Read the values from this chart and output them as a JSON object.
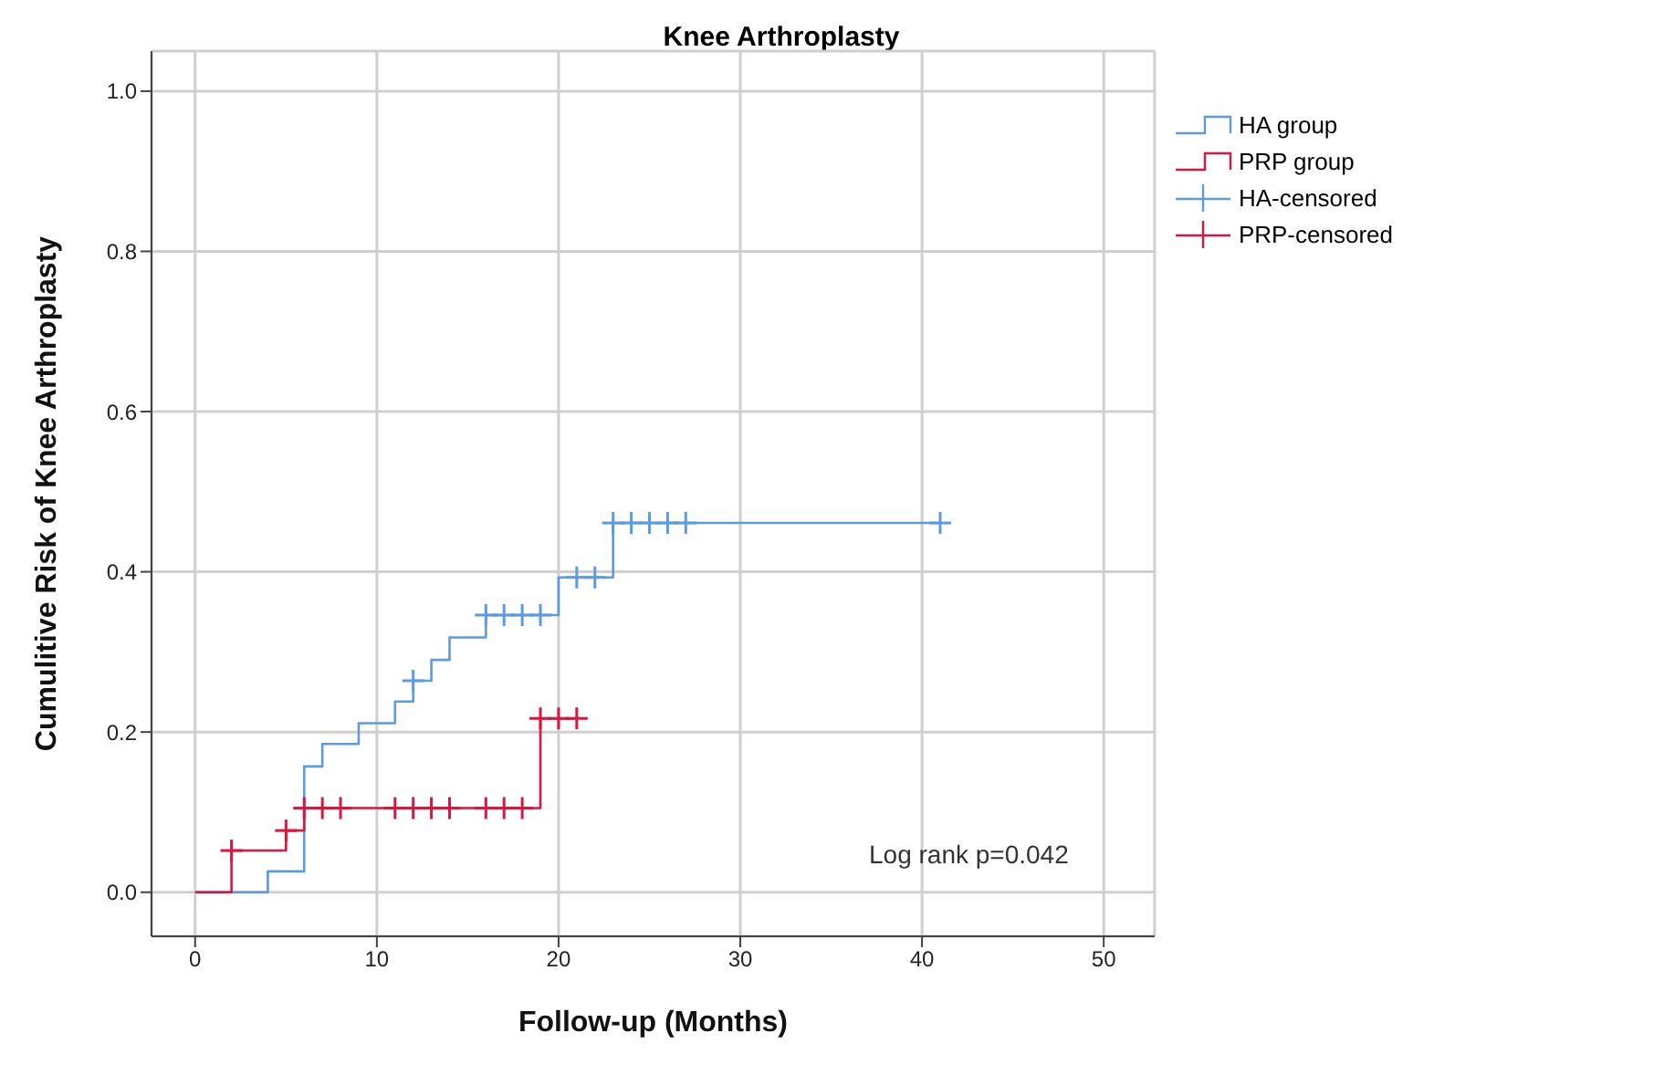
{
  "chart_data": {
    "type": "step",
    "title": "Knee Arthroplasty",
    "xlabel": "Follow-up (Months)",
    "ylabel": "Cumulitive Risk of Knee Arthroplasty",
    "xlim": [
      -2.4,
      52.8
    ],
    "xticks": [
      0,
      10,
      20,
      30,
      40,
      50
    ],
    "ylim": [
      -0.055,
      1.05
    ],
    "yticks": [
      {
        "value": 0,
        "label": "0.0"
      },
      {
        "value": 0.2,
        "label": "0.2"
      },
      {
        "value": 0.4,
        "label": "0.4"
      },
      {
        "value": 0.6,
        "label": "0.6"
      },
      {
        "value": 0.8,
        "label": "0.8"
      },
      {
        "value": 1,
        "label": "1.0"
      }
    ],
    "grid": true,
    "legend": "top right",
    "line_style": "solid",
    "annotations": [
      "Log rank p=0.042"
    ],
    "series": [
      {
        "name": "HA group",
        "color": "#5b9be0",
        "x": [
          0,
          4,
          6,
          7,
          9,
          11,
          12,
          13,
          14,
          16,
          20,
          23,
          41
        ],
        "values": [
          0,
          0.026,
          0.157,
          0.185,
          0.211,
          0.238,
          0.264,
          0.29,
          0.318,
          0.346,
          0.393,
          0.461,
          0.461
        ]
      },
      {
        "name": "PRP group",
        "color": "#d9163f",
        "x": [
          0,
          2,
          5,
          6,
          19,
          21
        ],
        "values": [
          0,
          0.052,
          0.077,
          0.105,
          0.217,
          0.217
        ]
      },
      {
        "name": "HA-censored",
        "type": "scatter",
        "marker": "cross",
        "color": "#5b9be0",
        "x": [
          12,
          16,
          17,
          18,
          19,
          21,
          22,
          23,
          24,
          25,
          26,
          27,
          41
        ],
        "values": [
          0.264,
          0.346,
          0.346,
          0.346,
          0.346,
          0.393,
          0.393,
          0.461,
          0.461,
          0.461,
          0.461,
          0.461,
          0.461
        ]
      },
      {
        "name": "PRP-censored",
        "type": "scatter",
        "marker": "cross",
        "color": "#d9163f",
        "x": [
          2,
          5,
          6,
          7,
          8,
          11,
          12,
          13,
          14,
          16,
          17,
          18,
          19,
          20,
          21
        ],
        "values": [
          0.052,
          0.077,
          0.105,
          0.105,
          0.105,
          0.105,
          0.105,
          0.105,
          0.105,
          0.105,
          0.105,
          0.105,
          0.217,
          0.217,
          0.217
        ]
      }
    ]
  }
}
